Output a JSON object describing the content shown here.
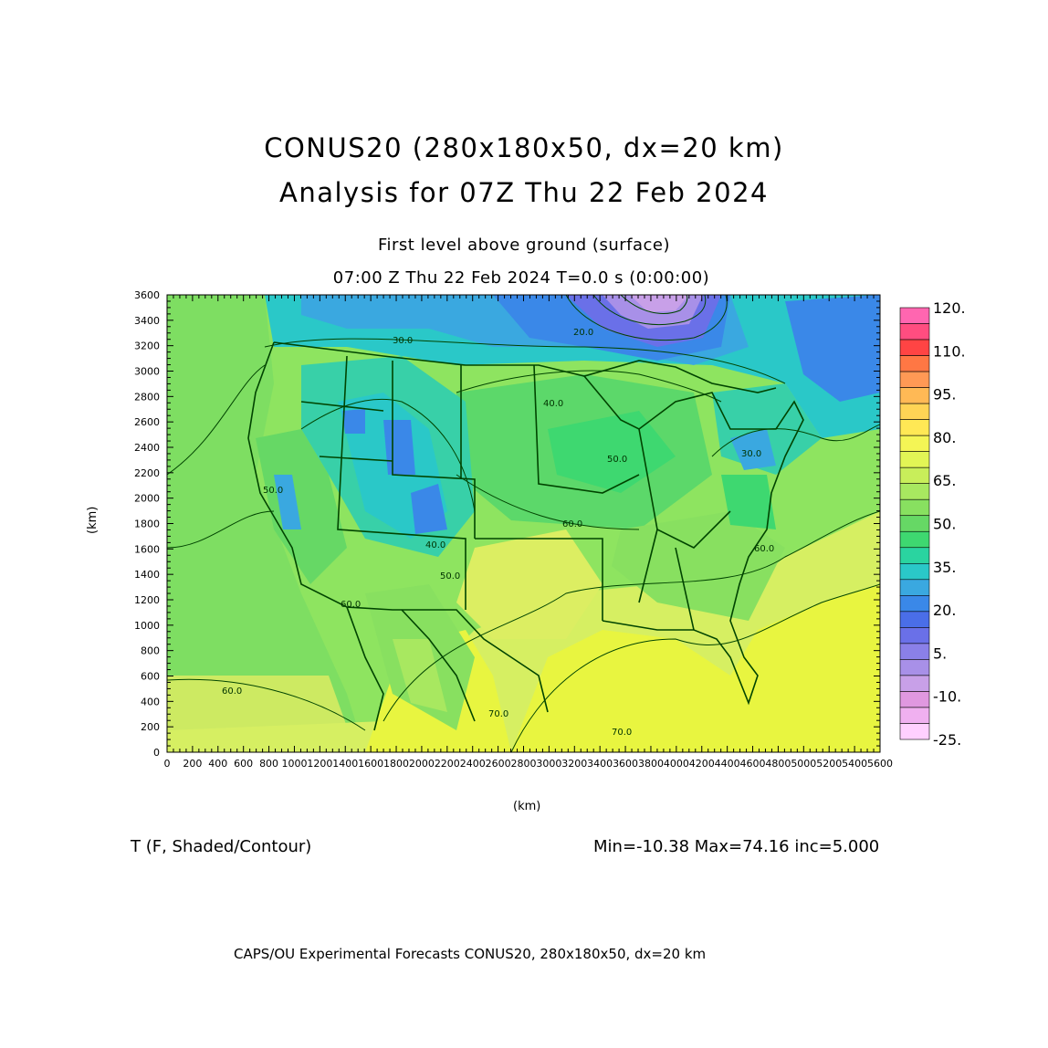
{
  "header": {
    "title_line1": "CONUS20 (280x180x50, dx=20 km)",
    "title_line2": "Analysis for 07Z Thu 22 Feb 2024",
    "level": "First level above ground (surface)",
    "valid_time": "07:00 Z Thu 22 Feb 2024    T=0.0 s (0:00:00)"
  },
  "axes": {
    "x_label": "(km)",
    "y_label": "(km)",
    "x_ticks": [
      "0",
      "200",
      "400",
      "600",
      "800",
      "1000",
      "1200",
      "1400",
      "1600",
      "1800",
      "2000",
      "2200",
      "2400",
      "2600",
      "2800",
      "3000",
      "3200",
      "3400",
      "3600",
      "3800",
      "4000",
      "4200",
      "4400",
      "4600",
      "4800",
      "5000",
      "5200",
      "5400",
      "5600"
    ],
    "y_ticks": [
      "0",
      "200",
      "400",
      "600",
      "800",
      "1000",
      "1200",
      "1400",
      "1600",
      "1800",
      "2000",
      "2200",
      "2400",
      "2600",
      "2800",
      "3000",
      "3200",
      "3400",
      "3600"
    ],
    "x_range": [
      0,
      5600
    ],
    "y_range": [
      0,
      3600
    ]
  },
  "colorbar": {
    "labels": [
      "120.",
      "110.",
      "95.",
      "80.",
      "65.",
      "50.",
      "35.",
      "20.",
      "5.",
      "-10.",
      "-25."
    ],
    "colors": [
      "#ff66b0",
      "#ff4d80",
      "#ff4444",
      "#ff7744",
      "#ff9955",
      "#ffb955",
      "#ffd455",
      "#ffe855",
      "#f4f555",
      "#e2f555",
      "#c8ee5a",
      "#a8e860",
      "#88e060",
      "#66d865",
      "#3ed870",
      "#2ad4a0",
      "#2ac8c8",
      "#3aa8e0",
      "#3a88e8",
      "#4a6ee8",
      "#6a70e8",
      "#8a80e8",
      "#a890e8",
      "#c8a0e8",
      "#e098e0",
      "#f0b0f0",
      "#ffd0ff"
    ]
  },
  "map_contour_labels": [
    "20.0",
    "30.0",
    "40.0",
    "50.0",
    "60.0",
    "70.0",
    "60.0",
    "50.0",
    "40.0",
    "30.0",
    "50.0",
    "60.0",
    "70.0",
    "60.0"
  ],
  "footer": {
    "variable": "T (F, Shaded/Contour)",
    "stats": "Min=-10.38 Max=74.16 inc=5.000",
    "credit": "CAPS/OU Experimental Forecasts  CONUS20, 280x180x50, dx=20 km"
  }
}
